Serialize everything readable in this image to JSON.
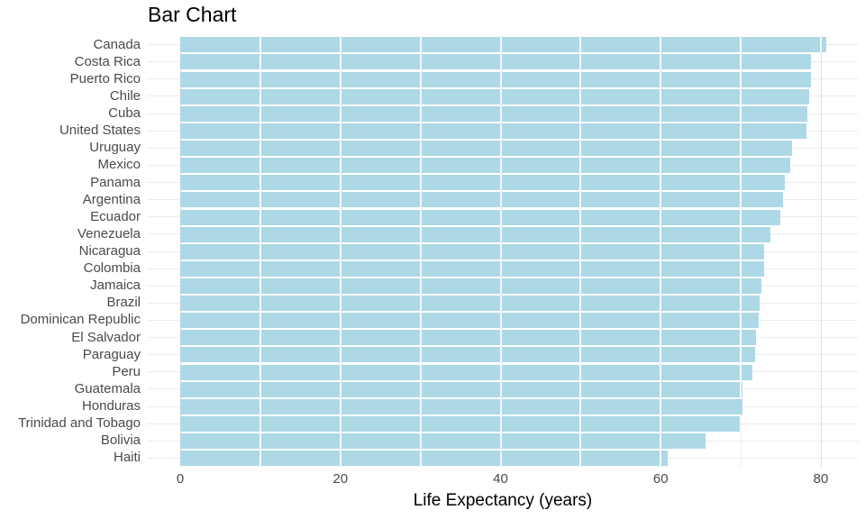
{
  "title": "Bar Chart",
  "chart_data": {
    "type": "bar",
    "orientation": "horizontal",
    "title": "Bar Chart",
    "xlabel": "Life Expectancy (years)",
    "ylabel": "",
    "categories": [
      "Canada",
      "Costa Rica",
      "Puerto Rico",
      "Chile",
      "Cuba",
      "United States",
      "Uruguay",
      "Mexico",
      "Panama",
      "Argentina",
      "Ecuador",
      "Venezuela",
      "Nicaragua",
      "Colombia",
      "Jamaica",
      "Brazil",
      "Dominican Republic",
      "El Salvador",
      "Paraguay",
      "Peru",
      "Guatemala",
      "Honduras",
      "Trinidad and Tobago",
      "Bolivia",
      "Haiti"
    ],
    "values": [
      80.65,
      78.78,
      78.75,
      78.55,
      78.27,
      78.24,
      76.38,
      76.2,
      75.54,
      75.32,
      74.99,
      73.75,
      72.9,
      72.89,
      72.57,
      72.39,
      72.24,
      71.88,
      71.75,
      71.42,
      70.26,
      70.2,
      69.82,
      65.55,
      60.92
    ],
    "x_ticks": [
      0,
      20,
      40,
      60,
      80
    ],
    "x_grid": [
      0,
      10,
      20,
      30,
      40,
      50,
      60,
      70,
      80
    ],
    "xlim": [
      0,
      84.7
    ],
    "grid": "on",
    "legend": "none",
    "bar_color": "#ADD8E6",
    "background": "#FFFFFF",
    "grid_color_major": "#DEDEDE",
    "grid_color_minor": "#ECECEC",
    "axis_text_color": "#4A4A4A",
    "title_color": "#000000"
  }
}
